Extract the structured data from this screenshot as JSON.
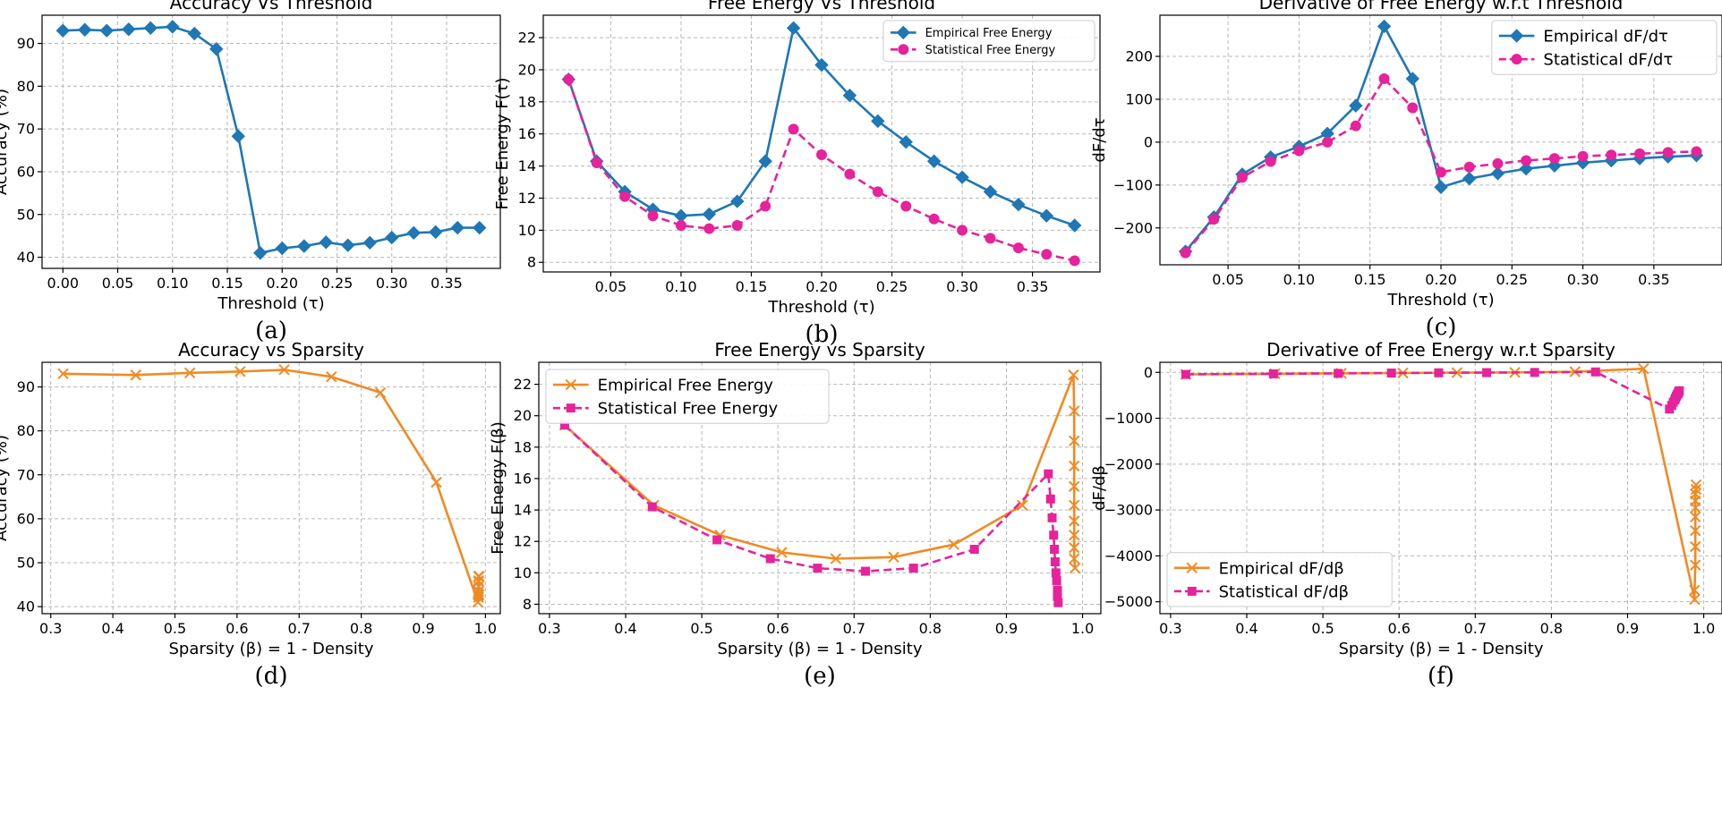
{
  "colors": {
    "blue": "#1f77b4",
    "pink": "#e6239a",
    "orange": "#f08a24",
    "grid": "#b8b8b8",
    "axis": "#000000"
  },
  "chart_data": [
    {
      "id": "a",
      "type": "line",
      "title": "Accuracy Vs Threshold",
      "xlabel": "Threshold (τ)",
      "ylabel": "Accuracy (%)",
      "caption": "(a)",
      "xlim": [
        -0.019,
        0.399
      ],
      "ylim": [
        37.4,
        96.6
      ],
      "xticks": [
        0.0,
        0.05,
        0.1,
        0.15,
        0.2,
        0.25,
        0.3,
        0.35
      ],
      "xtick_labels": [
        "0.00",
        "0.05",
        "0.10",
        "0.15",
        "0.20",
        "0.25",
        "0.30",
        "0.35"
      ],
      "yticks": [
        40,
        50,
        60,
        70,
        80,
        90
      ],
      "ytick_labels": [
        "40",
        "50",
        "60",
        "70",
        "80",
        "90"
      ],
      "legend": null,
      "series": [
        {
          "name": "Accuracy",
          "color": "#1f77b4",
          "marker": "diamond",
          "dash": "solid",
          "x": [
            0.0,
            0.02,
            0.04,
            0.06,
            0.08,
            0.1,
            0.12,
            0.14,
            0.16,
            0.18,
            0.2,
            0.22,
            0.24,
            0.26,
            0.28,
            0.3,
            0.32,
            0.34,
            0.36,
            0.38
          ],
          "y": [
            93.0,
            93.2,
            93.0,
            93.3,
            93.6,
            93.9,
            92.3,
            88.7,
            68.3,
            41.0,
            42.1,
            42.6,
            43.5,
            42.8,
            43.4,
            44.6,
            45.7,
            45.9,
            46.9,
            46.9
          ]
        }
      ]
    },
    {
      "id": "b",
      "type": "line",
      "title": "Free Energy Vs Threshold",
      "xlabel": "Threshold (τ)",
      "ylabel": "Free Energy F(τ)",
      "caption": "(b)",
      "xlim": [
        0.002,
        0.398
      ],
      "ylim": [
        7.4,
        23.4
      ],
      "xticks": [
        0.05,
        0.1,
        0.15,
        0.2,
        0.25,
        0.3,
        0.35
      ],
      "xtick_labels": [
        "0.05",
        "0.10",
        "0.15",
        "0.20",
        "0.25",
        "0.30",
        "0.35"
      ],
      "yticks": [
        8,
        10,
        12,
        14,
        16,
        18,
        20,
        22
      ],
      "ytick_labels": [
        "8",
        "10",
        "12",
        "14",
        "16",
        "18",
        "20",
        "22"
      ],
      "legend": "top-right",
      "legend_font": 13,
      "series": [
        {
          "name": "Empirical Free Energy",
          "color": "#1f77b4",
          "marker": "diamond",
          "dash": "solid",
          "x": [
            0.02,
            0.04,
            0.06,
            0.08,
            0.1,
            0.12,
            0.14,
            0.16,
            0.18,
            0.2,
            0.22,
            0.24,
            0.26,
            0.28,
            0.3,
            0.32,
            0.34,
            0.36,
            0.38
          ],
          "y": [
            19.4,
            14.3,
            12.4,
            11.3,
            10.9,
            11.0,
            11.8,
            14.3,
            22.6,
            20.3,
            18.4,
            16.8,
            15.5,
            14.3,
            13.3,
            12.4,
            11.6,
            10.9,
            10.3
          ]
        },
        {
          "name": "Statistical Free Energy",
          "color": "#e6239a",
          "marker": "circle",
          "dash": "dashed",
          "x": [
            0.02,
            0.04,
            0.06,
            0.08,
            0.1,
            0.12,
            0.14,
            0.16,
            0.18,
            0.2,
            0.22,
            0.24,
            0.26,
            0.28,
            0.3,
            0.32,
            0.34,
            0.36,
            0.38
          ],
          "y": [
            19.4,
            14.2,
            12.1,
            10.9,
            10.3,
            10.1,
            10.3,
            11.5,
            16.3,
            14.7,
            13.5,
            12.4,
            11.5,
            10.7,
            10.0,
            9.5,
            8.9,
            8.5,
            8.1
          ]
        }
      ]
    },
    {
      "id": "c",
      "type": "line",
      "title": "Derivative of Free Energy w.r.t Threshold",
      "xlabel": "Threshold (τ)",
      "ylabel": "dF/dτ",
      "caption": "(c)",
      "xlim": [
        0.002,
        0.398
      ],
      "ylim": [
        -286,
        296
      ],
      "xticks": [
        0.05,
        0.1,
        0.15,
        0.2,
        0.25,
        0.3,
        0.35
      ],
      "xtick_labels": [
        "0.05",
        "0.10",
        "0.15",
        "0.20",
        "0.25",
        "0.30",
        "0.35"
      ],
      "yticks": [
        -200,
        -100,
        0,
        100,
        200
      ],
      "ytick_labels": [
        "−200",
        "−100",
        "0",
        "100",
        "200"
      ],
      "legend": "top-right",
      "legend_font": 18,
      "series": [
        {
          "name": "Empirical dF/dτ",
          "color": "#1f77b4",
          "marker": "diamond",
          "dash": "solid",
          "x": [
            0.02,
            0.04,
            0.06,
            0.08,
            0.1,
            0.12,
            0.14,
            0.16,
            0.18,
            0.2,
            0.22,
            0.24,
            0.26,
            0.28,
            0.3,
            0.32,
            0.34,
            0.36,
            0.38
          ],
          "y": [
            -255,
            -175,
            -75,
            -35,
            -10,
            20,
            85,
            270,
            148,
            -105,
            -85,
            -73,
            -62,
            -55,
            -48,
            -43,
            -38,
            -34,
            -31
          ]
        },
        {
          "name": "Statistical dF/dτ",
          "color": "#e6239a",
          "marker": "circle",
          "dash": "dashed",
          "x": [
            0.02,
            0.04,
            0.06,
            0.08,
            0.1,
            0.12,
            0.14,
            0.16,
            0.18,
            0.2,
            0.22,
            0.24,
            0.26,
            0.28,
            0.3,
            0.32,
            0.34,
            0.36,
            0.38
          ],
          "y": [
            -258,
            -180,
            -82,
            -45,
            -20,
            0,
            38,
            148,
            80,
            -70,
            -58,
            -50,
            -43,
            -38,
            -33,
            -30,
            -27,
            -24,
            -22
          ]
        }
      ]
    },
    {
      "id": "d",
      "type": "line",
      "title": "Accuracy vs Sparsity",
      "xlabel": "Sparsity (β) = 1 - Density",
      "ylabel": "Accuracy (%)",
      "caption": "(d)",
      "xlim": [
        0.286,
        1.024
      ],
      "ylim": [
        38.4,
        95.6
      ],
      "xticks": [
        0.3,
        0.4,
        0.5,
        0.6,
        0.7,
        0.8,
        0.9,
        1.0
      ],
      "xtick_labels": [
        "0.3",
        "0.4",
        "0.5",
        "0.6",
        "0.7",
        "0.8",
        "0.9",
        "1.0"
      ],
      "yticks": [
        40,
        50,
        60,
        70,
        80,
        90
      ],
      "ytick_labels": [
        "40",
        "50",
        "60",
        "70",
        "80",
        "90"
      ],
      "legend": null,
      "series": [
        {
          "name": "Accuracy",
          "color": "#f08a24",
          "marker": "x",
          "dash": "solid",
          "x": [
            0.32,
            0.437,
            0.524,
            0.605,
            0.676,
            0.752,
            0.831,
            0.921,
            0.988,
            0.989,
            0.989,
            0.989,
            0.989,
            0.989,
            0.989,
            0.989,
            0.989,
            0.989,
            0.99
          ],
          "y": [
            93.0,
            92.7,
            93.2,
            93.5,
            93.9,
            92.3,
            88.7,
            68.3,
            41.0,
            42.1,
            42.6,
            43.5,
            42.8,
            43.4,
            44.6,
            45.7,
            45.9,
            46.9,
            46.9
          ]
        }
      ]
    },
    {
      "id": "e",
      "type": "line",
      "title": "Free Energy vs Sparsity",
      "xlabel": "Sparsity (β) = 1 - Density",
      "ylabel": "Free Energy F(β)",
      "caption": "(e)",
      "xlim": [
        0.286,
        1.024
      ],
      "ylim": [
        7.4,
        23.4
      ],
      "xticks": [
        0.3,
        0.4,
        0.5,
        0.6,
        0.7,
        0.8,
        0.9,
        1.0
      ],
      "xtick_labels": [
        "0.3",
        "0.4",
        "0.5",
        "0.6",
        "0.7",
        "0.8",
        "0.9",
        "1.0"
      ],
      "yticks": [
        8,
        10,
        12,
        14,
        16,
        18,
        20,
        22
      ],
      "ytick_labels": [
        "8",
        "10",
        "12",
        "14",
        "16",
        "18",
        "20",
        "22"
      ],
      "legend": "top-left",
      "legend_font": 18,
      "series": [
        {
          "name": "Empirical Free Energy",
          "color": "#f08a24",
          "marker": "x",
          "dash": "solid",
          "x": [
            0.32,
            0.437,
            0.524,
            0.605,
            0.676,
            0.752,
            0.831,
            0.921,
            0.988,
            0.989,
            0.989,
            0.989,
            0.989,
            0.989,
            0.989,
            0.989,
            0.989,
            0.989,
            0.99
          ],
          "y": [
            19.4,
            14.3,
            12.4,
            11.3,
            10.9,
            11.0,
            11.8,
            14.3,
            22.6,
            20.3,
            18.4,
            16.8,
            15.5,
            14.3,
            13.3,
            12.4,
            11.6,
            10.9,
            10.3
          ]
        },
        {
          "name": "Statistical Free Energy",
          "color": "#e6239a",
          "marker": "square",
          "dash": "dashed",
          "x": [
            0.32,
            0.435,
            0.52,
            0.59,
            0.652,
            0.715,
            0.778,
            0.858,
            0.955,
            0.958,
            0.96,
            0.962,
            0.963,
            0.964,
            0.965,
            0.966,
            0.967,
            0.967,
            0.968
          ],
          "y": [
            19.4,
            14.2,
            12.1,
            10.9,
            10.3,
            10.1,
            10.3,
            11.5,
            16.3,
            14.7,
            13.5,
            12.4,
            11.5,
            10.7,
            10.0,
            9.5,
            8.9,
            8.5,
            8.1
          ]
        }
      ]
    },
    {
      "id": "f",
      "type": "line",
      "title": "Derivative of Free Energy w.r.t Sparsity",
      "xlabel": "Sparsity (β) = 1 - Density",
      "ylabel": "dF/dβ",
      "caption": "(f)",
      "xlim": [
        0.286,
        1.024
      ],
      "ylim": [
        -5260,
        220
      ],
      "xticks": [
        0.3,
        0.4,
        0.5,
        0.6,
        0.7,
        0.8,
        0.9,
        1.0
      ],
      "xtick_labels": [
        "0.3",
        "0.4",
        "0.5",
        "0.6",
        "0.7",
        "0.8",
        "0.9",
        "1.0"
      ],
      "yticks": [
        -5000,
        -4000,
        -3000,
        -2000,
        -1000,
        0
      ],
      "ytick_labels": [
        "−5000",
        "−4000",
        "−3000",
        "−2000",
        "−1000",
        "0"
      ],
      "legend": "bottom-left",
      "legend_font": 18,
      "series": [
        {
          "name": "Empirical dF/dβ",
          "color": "#f08a24",
          "marker": "x",
          "dash": "solid",
          "x": [
            0.32,
            0.437,
            0.524,
            0.605,
            0.676,
            0.752,
            0.831,
            0.921,
            0.988,
            0.988,
            0.989,
            0.989,
            0.989,
            0.989,
            0.989,
            0.989,
            0.989,
            0.99,
            0.99
          ],
          "y": [
            -44,
            -30,
            -20,
            -12,
            -6,
            0,
            15,
            80,
            -4950,
            -4750,
            -4200,
            -3800,
            -3450,
            -3150,
            -2950,
            -2800,
            -2650,
            -2550,
            -2450
          ]
        },
        {
          "name": "Statistical dF/dβ",
          "color": "#e6239a",
          "marker": "square",
          "dash": "dashed",
          "x": [
            0.32,
            0.435,
            0.52,
            0.59,
            0.652,
            0.715,
            0.778,
            0.858,
            0.955,
            0.958,
            0.96,
            0.962,
            0.963,
            0.964,
            0.965,
            0.966,
            0.967,
            0.967,
            0.968
          ],
          "y": [
            -44,
            -32,
            -22,
            -14,
            -9,
            -5,
            -1,
            10,
            -800,
            -720,
            -650,
            -600,
            -560,
            -520,
            -490,
            -465,
            -440,
            -420,
            -400
          ]
        }
      ]
    }
  ]
}
